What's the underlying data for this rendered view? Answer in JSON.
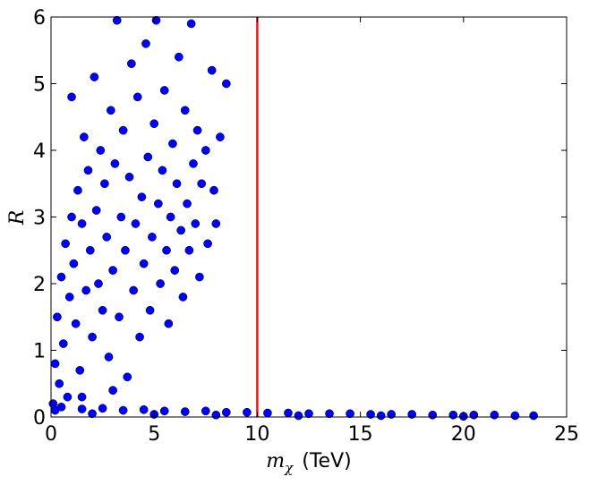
{
  "chart_data": {
    "type": "scatter",
    "xlabel": {
      "symbol": "m",
      "subscript": "χ",
      "unit": "(TeV)"
    },
    "ylabel": "R",
    "xlim": [
      0,
      25
    ],
    "ylim": [
      0,
      6
    ],
    "xticks": [
      0,
      5,
      10,
      15,
      20,
      25
    ],
    "yticks": [
      0,
      1,
      2,
      3,
      4,
      5,
      6
    ],
    "color": "#0000ff",
    "vline": {
      "x": 10,
      "color": "#e31a1c"
    },
    "x": [
      0.1,
      0.2,
      0.3,
      0.4,
      0.5,
      0.6,
      0.7,
      0.8,
      0.9,
      1.0,
      1.0,
      1.1,
      1.2,
      1.3,
      1.4,
      1.5,
      1.6,
      1.7,
      1.8,
      1.9,
      2.0,
      2.1,
      2.2,
      2.3,
      2.4,
      2.5,
      2.6,
      2.7,
      2.8,
      2.9,
      3.0,
      3.1,
      3.2,
      3.3,
      3.4,
      3.5,
      3.6,
      3.7,
      3.8,
      3.9,
      4.0,
      4.1,
      4.2,
      4.3,
      4.4,
      4.5,
      4.6,
      4.7,
      4.8,
      4.9,
      5.0,
      5.1,
      5.2,
      5.3,
      5.4,
      5.5,
      5.6,
      5.7,
      5.8,
      5.9,
      6.0,
      6.1,
      6.2,
      6.3,
      6.4,
      6.5,
      6.6,
      6.7,
      6.8,
      6.9,
      7.0,
      7.1,
      7.2,
      7.3,
      7.5,
      7.6,
      7.8,
      7.9,
      8.0,
      8.2,
      8.5,
      0.2,
      1.5,
      3.0,
      0.5,
      1.5,
      2.5,
      3.5,
      4.5,
      5.5,
      6.5,
      7.5,
      8.5,
      9.5,
      10.5,
      11.5,
      12.5,
      13.5,
      14.5,
      15.5,
      16.5,
      17.5,
      18.5,
      19.5,
      20.5,
      21.5,
      22.5,
      23.4,
      2.0,
      5.0,
      8.0,
      12.0,
      16.0,
      20.0
    ],
    "values": [
      0.2,
      0.8,
      1.5,
      0.5,
      2.1,
      1.1,
      2.6,
      0.3,
      1.8,
      3.0,
      4.8,
      2.3,
      1.4,
      3.4,
      0.7,
      2.9,
      4.2,
      1.9,
      3.7,
      2.5,
      1.2,
      5.1,
      3.1,
      2.0,
      4.0,
      1.6,
      3.5,
      2.7,
      0.9,
      4.6,
      2.2,
      3.8,
      5.95,
      1.5,
      3.0,
      4.3,
      2.5,
      0.6,
      3.6,
      5.3,
      1.9,
      2.9,
      4.8,
      1.2,
      3.3,
      2.3,
      5.6,
      3.9,
      1.6,
      2.7,
      4.4,
      5.95,
      3.2,
      2.0,
      3.7,
      4.9,
      2.5,
      1.4,
      3.0,
      4.1,
      2.2,
      3.5,
      5.4,
      2.8,
      1.8,
      4.6,
      3.2,
      2.5,
      5.9,
      3.8,
      2.9,
      4.3,
      2.1,
      3.5,
      4.0,
      2.6,
      5.2,
      3.4,
      2.9,
      4.2,
      5.0,
      0.1,
      0.3,
      0.4,
      0.15,
      0.12,
      0.13,
      0.1,
      0.11,
      0.09,
      0.08,
      0.09,
      0.07,
      0.07,
      0.06,
      0.06,
      0.05,
      0.05,
      0.05,
      0.04,
      0.04,
      0.04,
      0.03,
      0.03,
      0.03,
      0.03,
      0.02,
      0.02,
      0.05,
      0.04,
      0.03,
      0.02,
      0.02,
      0.01
    ]
  }
}
